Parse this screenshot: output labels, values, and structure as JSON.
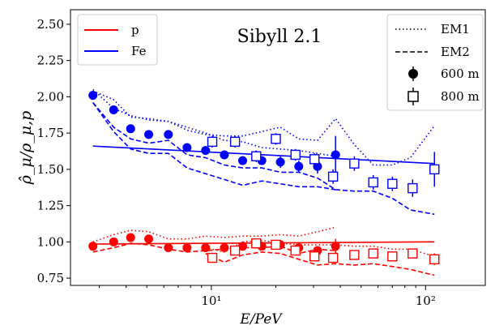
{
  "chart_data": {
    "type": "scatter",
    "title": "Sibyll 2.1",
    "xlabel": "E/PeV",
    "ylabel": "ρ̂_μ/ρ_μ,p",
    "x_scale": "log",
    "xlim": [
      2.2,
      190
    ],
    "ylim": [
      0.7,
      2.6
    ],
    "x_ticks": [
      {
        "value": 10,
        "label": "10¹"
      },
      {
        "value": 100,
        "label": "10²"
      }
    ],
    "y_ticks": [
      0.75,
      1.0,
      1.25,
      1.5,
      1.75,
      2.0,
      2.25,
      2.5
    ],
    "y_tick_labels": [
      "0.75",
      "1.00",
      "1.25",
      "1.50",
      "1.75",
      "2.00",
      "2.25",
      "2.50"
    ],
    "grid": false,
    "legend_left": {
      "placement": "top-left",
      "entries": [
        {
          "label": "p",
          "color": "#ff0000"
        },
        {
          "label": "Fe",
          "color": "#0000ff"
        }
      ]
    },
    "legend_right": {
      "placement": "top-right",
      "entries": [
        {
          "label": "EM1",
          "style": "dotted"
        },
        {
          "label": "EM2",
          "style": "dashed"
        },
        {
          "label": "600 m",
          "marker": "filled-circle"
        },
        {
          "label": "800 m",
          "marker": "open-square"
        }
      ]
    },
    "colors": {
      "p": "#ff0000",
      "Fe": "#0000ff"
    },
    "series": [
      {
        "primary": "Fe",
        "kind": "line",
        "style": "solid",
        "points": [
          [
            2.8,
            1.66
          ],
          [
            110,
            1.54
          ]
        ]
      },
      {
        "primary": "p",
        "kind": "line",
        "style": "solid",
        "points": [
          [
            2.8,
            0.985
          ],
          [
            110,
            1.0
          ]
        ]
      },
      {
        "primary": "Fe",
        "kind": "line",
        "style": "dotted",
        "points": [
          [
            2.8,
            2.04
          ],
          [
            3.5,
            1.98
          ],
          [
            4.2,
            1.86
          ],
          [
            5.1,
            1.85
          ],
          [
            6.3,
            1.83
          ],
          [
            7.7,
            1.77
          ],
          [
            9.4,
            1.74
          ],
          [
            11.5,
            1.73
          ],
          [
            14,
            1.73
          ],
          [
            17.2,
            1.76
          ],
          [
            21,
            1.79
          ],
          [
            25.6,
            1.71
          ],
          [
            31.3,
            1.7
          ],
          [
            38,
            1.85
          ],
          [
            46.5,
            1.67
          ],
          [
            57,
            1.53
          ],
          [
            70,
            1.53
          ],
          [
            85,
            1.58
          ],
          [
            110,
            1.8
          ]
        ]
      },
      {
        "primary": "Fe",
        "kind": "line",
        "style": "dashed",
        "points": [
          [
            2.8,
            1.96
          ],
          [
            3.5,
            1.79
          ],
          [
            4.2,
            1.71
          ],
          [
            5.1,
            1.68
          ],
          [
            6.3,
            1.7
          ],
          [
            7.7,
            1.6
          ],
          [
            9.4,
            1.58
          ],
          [
            11.5,
            1.53
          ],
          [
            14,
            1.51
          ],
          [
            17.2,
            1.51
          ],
          [
            21,
            1.48
          ],
          [
            25.6,
            1.48
          ],
          [
            31.3,
            1.44
          ],
          [
            38,
            1.36
          ],
          [
            46.5,
            1.35
          ],
          [
            57,
            1.35
          ],
          [
            70,
            1.3
          ],
          [
            85,
            1.22
          ],
          [
            110,
            1.19
          ]
        ]
      },
      {
        "primary": "Fe",
        "kind": "line",
        "style": "dashed",
        "points": [
          [
            2.8,
            1.96
          ],
          [
            3.5,
            1.76
          ],
          [
            4.2,
            1.64
          ],
          [
            5.1,
            1.61
          ],
          [
            6.3,
            1.61
          ],
          [
            7.7,
            1.51
          ],
          [
            9.4,
            1.47
          ],
          [
            11.5,
            1.43
          ],
          [
            14,
            1.39
          ],
          [
            17.2,
            1.42
          ],
          [
            21,
            1.4
          ],
          [
            25.6,
            1.38
          ],
          [
            31.3,
            1.38
          ],
          [
            38,
            1.36
          ]
        ]
      },
      {
        "primary": "Fe",
        "kind": "line",
        "style": "dotted",
        "points": [
          [
            2.8,
            2.05
          ],
          [
            3.5,
            1.92
          ],
          [
            4.2,
            1.87
          ],
          [
            5.1,
            1.84
          ],
          [
            6.3,
            1.83
          ],
          [
            7.7,
            1.79
          ],
          [
            9.4,
            1.75
          ],
          [
            11.5,
            1.7
          ],
          [
            14,
            1.69
          ],
          [
            17.2,
            1.65
          ],
          [
            21,
            1.64
          ],
          [
            25.6,
            1.63
          ],
          [
            31.3,
            1.61
          ],
          [
            38,
            1.59
          ]
        ]
      },
      {
        "primary": "p",
        "kind": "line",
        "style": "dotted",
        "points": [
          [
            2.8,
            1.0
          ],
          [
            3.5,
            1.05
          ],
          [
            4.2,
            1.08
          ],
          [
            5.1,
            1.07
          ],
          [
            6.3,
            1.02
          ],
          [
            7.7,
            1.02
          ],
          [
            9.4,
            1.04
          ],
          [
            11.5,
            1.03
          ],
          [
            14,
            1.04
          ],
          [
            17.2,
            1.04
          ],
          [
            21,
            1.05
          ],
          [
            25.6,
            1.04
          ],
          [
            31.3,
            1.07
          ],
          [
            38,
            1.1
          ]
        ]
      },
      {
        "primary": "p",
        "kind": "line",
        "style": "dashed",
        "points": [
          [
            2.8,
            0.93
          ],
          [
            3.5,
            0.96
          ],
          [
            4.2,
            0.99
          ],
          [
            5.1,
            0.98
          ],
          [
            6.3,
            0.95
          ],
          [
            7.7,
            0.93
          ],
          [
            9.4,
            0.94
          ],
          [
            11.5,
            0.95
          ],
          [
            14,
            0.96
          ],
          [
            17.2,
            0.96
          ],
          [
            21,
            0.97
          ],
          [
            25.6,
            0.92
          ],
          [
            31.3,
            0.95
          ],
          [
            38,
            0.94
          ]
        ]
      },
      {
        "primary": "p",
        "kind": "line",
        "style": "dotted",
        "points": [
          [
            9.4,
            0.96
          ],
          [
            11.5,
            0.93
          ],
          [
            14,
            1.0
          ],
          [
            17.2,
            1.01
          ],
          [
            21,
            0.99
          ],
          [
            25.6,
            0.98
          ],
          [
            31.3,
            0.98
          ],
          [
            38,
            0.98
          ],
          [
            46.5,
            0.97
          ],
          [
            57,
            0.97
          ],
          [
            70,
            0.95
          ],
          [
            85,
            0.95
          ],
          [
            110,
            0.9
          ]
        ]
      },
      {
        "primary": "p",
        "kind": "line",
        "style": "dashed",
        "points": [
          [
            9.4,
            0.92
          ],
          [
            11.5,
            0.86
          ],
          [
            14,
            0.91
          ],
          [
            17.2,
            0.93
          ],
          [
            21,
            0.92
          ],
          [
            25.6,
            0.88
          ],
          [
            31.3,
            0.84
          ],
          [
            38,
            0.85
          ],
          [
            46.5,
            0.84
          ],
          [
            57,
            0.85
          ],
          [
            70,
            0.83
          ],
          [
            85,
            0.81
          ],
          [
            110,
            0.77
          ]
        ]
      },
      {
        "primary": "Fe",
        "kind": "marker",
        "marker": "filled-circle",
        "points": [
          [
            2.8,
            2.01,
            0.03
          ],
          [
            3.5,
            1.91,
            0.03
          ],
          [
            4.2,
            1.78,
            0.03
          ],
          [
            5.1,
            1.74,
            0.03
          ],
          [
            6.3,
            1.74,
            0.03
          ],
          [
            7.7,
            1.65,
            0.03
          ],
          [
            9.4,
            1.63,
            0.03
          ],
          [
            11.5,
            1.6,
            0.03
          ],
          [
            14,
            1.56,
            0.03
          ],
          [
            17.2,
            1.56,
            0.03
          ],
          [
            21,
            1.55,
            0.04
          ],
          [
            25.6,
            1.52,
            0.04
          ],
          [
            31.3,
            1.52,
            0.05
          ],
          [
            38,
            1.6,
            0.13
          ]
        ]
      },
      {
        "primary": "p",
        "kind": "marker",
        "marker": "filled-circle",
        "points": [
          [
            2.8,
            0.97,
            0.02
          ],
          [
            3.5,
            1.0,
            0.02
          ],
          [
            4.2,
            1.03,
            0.02
          ],
          [
            5.1,
            1.02,
            0.02
          ],
          [
            6.3,
            0.96,
            0.02
          ],
          [
            7.7,
            0.96,
            0.02
          ],
          [
            9.4,
            0.96,
            0.02
          ],
          [
            11.5,
            0.96,
            0.02
          ],
          [
            14,
            0.97,
            0.02
          ],
          [
            17.2,
            0.97,
            0.02
          ],
          [
            21,
            0.98,
            0.02
          ],
          [
            25.6,
            0.96,
            0.02
          ],
          [
            31.3,
            0.94,
            0.03
          ],
          [
            38,
            0.97,
            0.05
          ]
        ]
      },
      {
        "primary": "Fe",
        "kind": "marker",
        "marker": "open-square",
        "points": [
          [
            10.1,
            1.69,
            0.04
          ],
          [
            12.9,
            1.69,
            0.04
          ],
          [
            16.2,
            1.59,
            0.04
          ],
          [
            20,
            1.71,
            0.04
          ],
          [
            24.7,
            1.6,
            0.04
          ],
          [
            30.3,
            1.57,
            0.04
          ],
          [
            37,
            1.45,
            0.05
          ],
          [
            46.5,
            1.54,
            0.05
          ],
          [
            57,
            1.41,
            0.05
          ],
          [
            70,
            1.4,
            0.05
          ],
          [
            87,
            1.37,
            0.06
          ],
          [
            110,
            1.5,
            0.12
          ]
        ]
      },
      {
        "primary": "p",
        "kind": "marker",
        "marker": "open-square",
        "points": [
          [
            10.1,
            0.89,
            0.03
          ],
          [
            12.9,
            0.94,
            0.03
          ],
          [
            16.2,
            0.99,
            0.03
          ],
          [
            20,
            0.98,
            0.03
          ],
          [
            24.7,
            0.94,
            0.03
          ],
          [
            30.3,
            0.9,
            0.03
          ],
          [
            37,
            0.89,
            0.03
          ],
          [
            46.5,
            0.91,
            0.03
          ],
          [
            57,
            0.92,
            0.03
          ],
          [
            70,
            0.9,
            0.03
          ],
          [
            87,
            0.92,
            0.03
          ],
          [
            110,
            0.88,
            0.04
          ]
        ]
      }
    ]
  }
}
